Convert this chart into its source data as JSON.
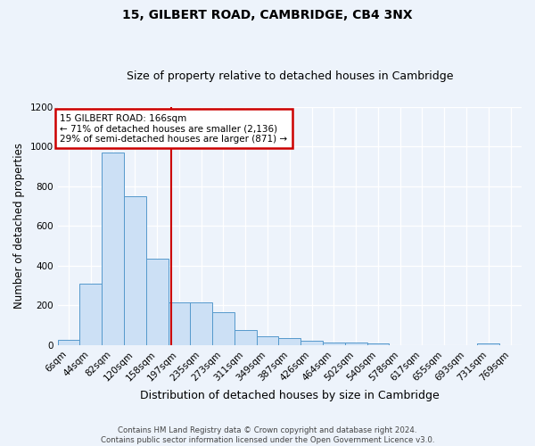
{
  "title1": "15, GILBERT ROAD, CAMBRIDGE, CB4 3NX",
  "title2": "Size of property relative to detached houses in Cambridge",
  "xlabel": "Distribution of detached houses by size in Cambridge",
  "ylabel": "Number of detached properties",
  "bar_labels": [
    "6sqm",
    "44sqm",
    "82sqm",
    "120sqm",
    "158sqm",
    "197sqm",
    "235sqm",
    "273sqm",
    "311sqm",
    "349sqm",
    "387sqm",
    "426sqm",
    "464sqm",
    "502sqm",
    "540sqm",
    "578sqm",
    "617sqm",
    "655sqm",
    "693sqm",
    "731sqm",
    "769sqm"
  ],
  "bar_values": [
    25,
    310,
    970,
    750,
    435,
    215,
    215,
    165,
    75,
    45,
    35,
    20,
    15,
    12,
    10,
    0,
    0,
    0,
    0,
    10,
    0
  ],
  "bar_color": "#cce0f5",
  "bar_edge_color": "#5599cc",
  "vline_x": 4.65,
  "vline_color": "#cc0000",
  "annotation_text": "15 GILBERT ROAD: 166sqm\n← 71% of detached houses are smaller (2,136)\n29% of semi-detached houses are larger (871) →",
  "annotation_box_color": "white",
  "annotation_box_edge": "#cc0000",
  "ylim": [
    0,
    1200
  ],
  "yticks": [
    0,
    200,
    400,
    600,
    800,
    1000,
    1200
  ],
  "footer": "Contains HM Land Registry data © Crown copyright and database right 2024.\nContains public sector information licensed under the Open Government Licence v3.0.",
  "bg_color": "#edf3fb",
  "plot_bg_color": "#edf3fb",
  "title1_fontsize": 10,
  "title2_fontsize": 9
}
